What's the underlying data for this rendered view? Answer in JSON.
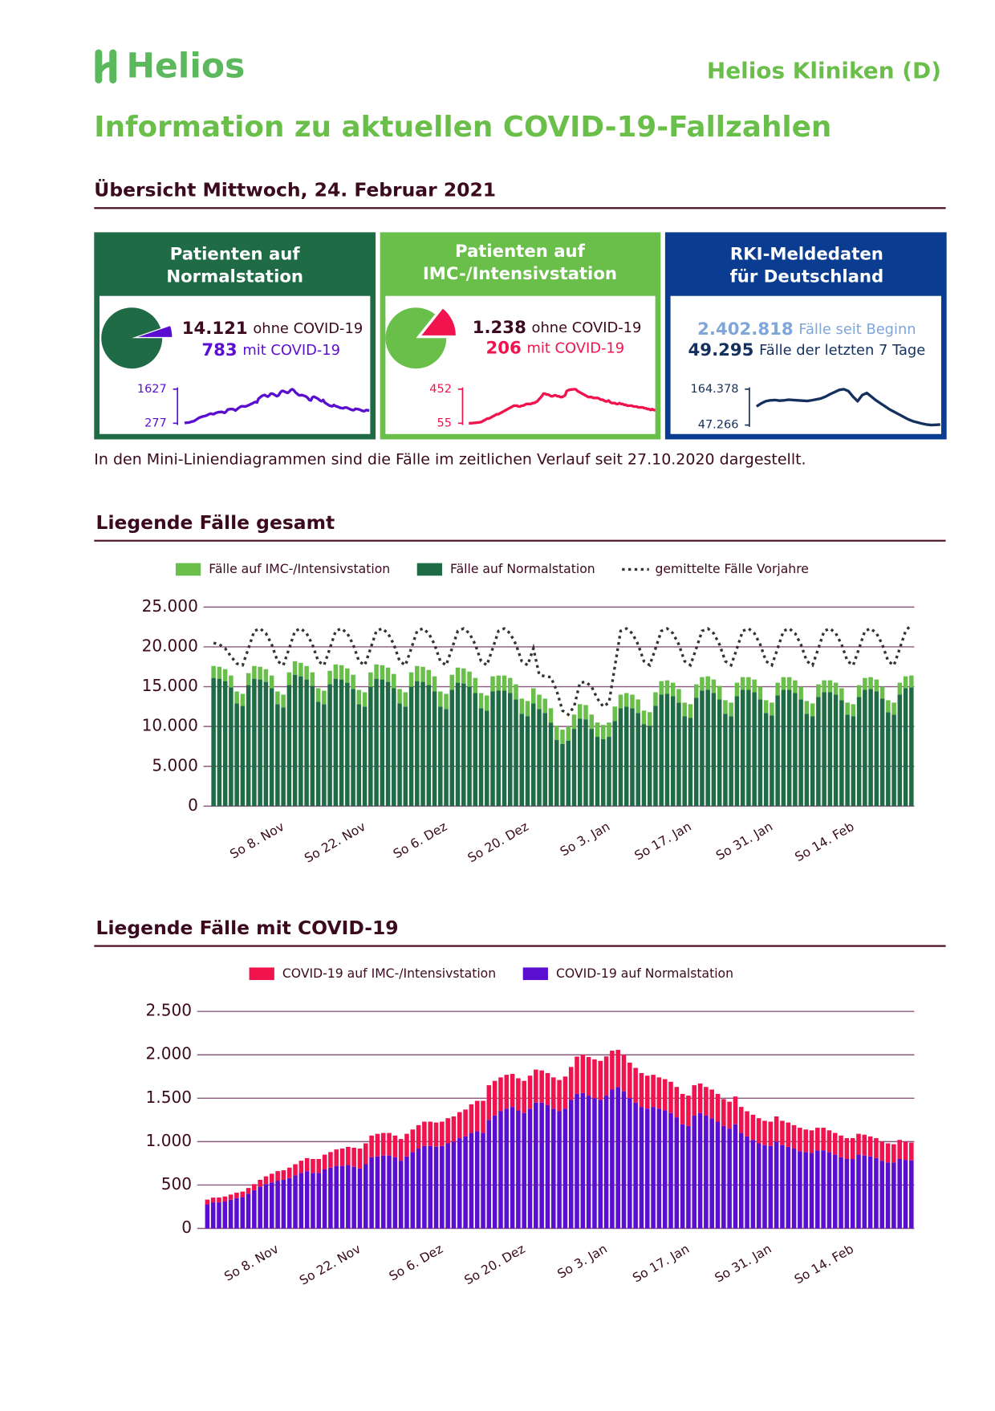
{
  "header": {
    "logo": "Helios",
    "org": "Helios Kliniken (D)",
    "title": "Information zu aktuellen COVID-19-Fallzahlen"
  },
  "overview": {
    "heading": "Übersicht Mittwoch, 24. Februar 2021",
    "note": "In den Mini-Liniendiagrammen sind die Fälle im zeitlichen Verlauf seit 27.10.2020 dargestellt.",
    "cards": [
      {
        "title": [
          "Patienten auf",
          "Normalstation"
        ],
        "pie": {
          "type": "pie",
          "values": [
            14121,
            783
          ],
          "value_labels": [
            "14.121",
            "783"
          ],
          "labels": [
            "ohne COVID-19",
            "mit COVID-19"
          ],
          "colors": [
            "#1f6b45",
            "#5a0fd0"
          ]
        },
        "spark": {
          "type": "line",
          "color": "#5a0fd0",
          "ylim": [
            277,
            1627
          ],
          "yticks": [
            277,
            1627
          ]
        }
      },
      {
        "title": [
          "Patienten auf",
          "IMC-/Intensivstation"
        ],
        "pie": {
          "type": "pie",
          "values": [
            1238,
            206
          ],
          "value_labels": [
            "1.238",
            "206"
          ],
          "labels": [
            "ohne COVID-19",
            "mit COVID-19"
          ],
          "colors": [
            "#6abf4b",
            "#f0134d"
          ]
        },
        "spark": {
          "type": "line",
          "color": "#f0134d",
          "ylim": [
            55,
            452
          ],
          "yticks": [
            55,
            452
          ]
        }
      },
      {
        "title": [
          "RKI-Meldedaten",
          "für Deutschland"
        ],
        "stats": [
          {
            "number": "2.402.818",
            "text": "Fälle seit Beginn"
          },
          {
            "number": "49.295",
            "text": "Fälle der letzten 7 Tage"
          }
        ],
        "spark": {
          "type": "line",
          "color": "#14305e",
          "ylim": [
            47266,
            164378
          ],
          "yticks": [
            {
              "value": 47266,
              "label": "47.266"
            },
            {
              "value": 164378,
              "label": "164.378"
            }
          ],
          "values": [
            108000,
            118000,
            125000,
            128000,
            129000,
            127000,
            128000,
            130000,
            129000,
            128000,
            127000,
            126000,
            128000,
            131000,
            134000,
            140000,
            148000,
            155000,
            162000,
            164378,
            158000,
            140000,
            125000,
            145000,
            152000,
            140000,
            128000,
            118000,
            108000,
            98000,
            90000,
            82000,
            74000,
            66000,
            60000,
            56000,
            52000,
            49000,
            47266,
            48000,
            49000
          ]
        }
      }
    ]
  },
  "chart_data": [
    {
      "type": "bar",
      "stacked": true,
      "title": "Liegende Fälle gesamt",
      "categories": [
        null,
        null,
        null,
        null,
        null,
        null,
        null,
        null,
        null,
        null,
        null,
        null,
        "So 8. Nov",
        null,
        null,
        null,
        null,
        null,
        null,
        null,
        null,
        null,
        null,
        null,
        null,
        null,
        "So 22. Nov",
        null,
        null,
        null,
        null,
        null,
        null,
        null,
        null,
        null,
        null,
        null,
        null,
        null,
        "So 6. Dez",
        null,
        null,
        null,
        null,
        null,
        null,
        null,
        null,
        null,
        null,
        null,
        null,
        null,
        "So 20. Dez",
        null,
        null,
        null,
        null,
        null,
        null,
        null,
        null,
        null,
        null,
        null,
        null,
        null,
        "So 3. Jan",
        null,
        null,
        null,
        null,
        null,
        null,
        null,
        null,
        null,
        null,
        null,
        null,
        null,
        "So 17. Jan",
        null,
        null,
        null,
        null,
        null,
        null,
        null,
        null,
        null,
        null,
        null,
        null,
        null,
        "So 31. Jan",
        null,
        null,
        null,
        null,
        null,
        null,
        null,
        null,
        null,
        null,
        null,
        null,
        null,
        "So 14. Feb",
        null,
        null,
        null,
        null,
        null,
        null,
        null,
        null,
        null,
        null
      ],
      "series": [
        {
          "name": "Fälle auf IMC-/Intensivstation",
          "color": "#6abf4b",
          "values": [
            1500,
            1500,
            1500,
            1500,
            1500,
            1500,
            1500,
            1600,
            1600,
            1600,
            1600,
            1600,
            1600,
            1600,
            1700,
            1700,
            1700,
            1700,
            1700,
            1700,
            1700,
            1800,
            1800,
            1800,
            1800,
            1800,
            1800,
            1800,
            1800,
            1800,
            1800,
            1800,
            1800,
            1800,
            1800,
            1900,
            1900,
            1900,
            1900,
            1900,
            1900,
            1900,
            1900,
            1900,
            1900,
            1900,
            1900,
            1900,
            1900,
            1900,
            1900,
            1900,
            1900,
            1900,
            1900,
            1900,
            1800,
            1800,
            1800,
            1800,
            1800,
            1800,
            1800,
            1800,
            1800,
            1800,
            1800,
            1800,
            1800,
            1800,
            1700,
            1700,
            1700,
            1700,
            1700,
            1700,
            1700,
            1700,
            1700,
            1700,
            1700,
            1700,
            1700,
            1700,
            1700,
            1700,
            1700,
            1700,
            1700,
            1700,
            1700,
            1600,
            1600,
            1600,
            1600,
            1600,
            1600,
            1600,
            1600,
            1600,
            1600,
            1600,
            1600,
            1600,
            1600,
            1500,
            1500,
            1500,
            1500,
            1500,
            1500,
            1500,
            1500,
            1500,
            1500,
            1500,
            1500,
            1500,
            1500,
            1500,
            1500
          ]
        },
        {
          "name": "Fälle auf Normalstation",
          "color": "#1f6b45",
          "values": [
            16100,
            16000,
            15700,
            14900,
            12900,
            12600,
            15200,
            16000,
            15900,
            15600,
            14800,
            12800,
            12400,
            15200,
            16500,
            16300,
            15900,
            15100,
            13100,
            12800,
            15300,
            16000,
            15900,
            15500,
            14700,
            12800,
            12500,
            15000,
            16000,
            15900,
            15600,
            14800,
            12900,
            12500,
            15000,
            15700,
            15600,
            15200,
            14400,
            12500,
            12200,
            14600,
            15500,
            15400,
            15000,
            14200,
            12300,
            12000,
            14400,
            14500,
            14500,
            14200,
            13400,
            11600,
            11300,
            12900,
            12200,
            11700,
            10500,
            8300,
            7800,
            8200,
            9700,
            11000,
            10900,
            9700,
            8700,
            8400,
            8700,
            10700,
            12300,
            12500,
            12300,
            11700,
            10300,
            10100,
            12600,
            14000,
            14100,
            13800,
            13000,
            11300,
            11100,
            13600,
            14500,
            14600,
            14200,
            13400,
            11600,
            11300,
            13800,
            14600,
            14600,
            14300,
            13400,
            11700,
            11400,
            13900,
            14600,
            14600,
            14200,
            13400,
            11600,
            11300,
            13700,
            14300,
            14300,
            14000,
            13300,
            11500,
            11300,
            13700,
            14600,
            14700,
            14400,
            13500,
            11800,
            11500,
            14000,
            14800,
            14900
          ]
        },
        {
          "name": "gemittelte Fälle Vorjahre",
          "type": "line",
          "dashed": true,
          "color": "#333333",
          "values": [
            20500,
            20300,
            19800,
            18800,
            17900,
            17700,
            19800,
            22000,
            22300,
            21700,
            20300,
            18200,
            17700,
            19800,
            22000,
            22300,
            21700,
            20300,
            18200,
            17700,
            19800,
            22000,
            22300,
            21700,
            20300,
            18200,
            17700,
            19800,
            22000,
            22300,
            21700,
            20300,
            18200,
            17700,
            19800,
            22000,
            22300,
            21700,
            20300,
            18200,
            17700,
            19800,
            22000,
            22300,
            21700,
            20300,
            18200,
            17700,
            19800,
            22000,
            22300,
            21700,
            20300,
            18200,
            17700,
            19800,
            16500,
            16300,
            16200,
            14500,
            12000,
            11500,
            12500,
            15500,
            15600,
            15000,
            13500,
            12500,
            13000,
            17500,
            22000,
            22300,
            21700,
            20300,
            18200,
            17700,
            19800,
            22000,
            22300,
            21700,
            20300,
            18200,
            17700,
            19800,
            22000,
            22300,
            21700,
            20300,
            18200,
            17700,
            19800,
            22000,
            22300,
            21700,
            20300,
            18200,
            17700,
            19800,
            22000,
            22300,
            21700,
            20300,
            18200,
            17700,
            19800,
            22000,
            22300,
            21700,
            20300,
            18200,
            17700,
            19800,
            22000,
            22300,
            21700,
            20300,
            18200,
            17700,
            19800,
            22000,
            22800
          ]
        }
      ],
      "ylim": [
        0,
        25000
      ],
      "yticks": [
        0,
        {
          "value": 5000,
          "label": "5.000"
        },
        {
          "value": 10000,
          "label": "10.000"
        },
        {
          "value": 15000,
          "label": "15.000"
        },
        {
          "value": 20000,
          "label": "20.000"
        },
        {
          "value": 25000,
          "label": "25.000"
        }
      ],
      "grid": true
    },
    {
      "type": "bar",
      "stacked": true,
      "title": "Liegende Fälle mit COVID-19",
      "categories": [
        null,
        null,
        null,
        null,
        null,
        null,
        null,
        null,
        null,
        null,
        null,
        null,
        "So 8. Nov",
        null,
        null,
        null,
        null,
        null,
        null,
        null,
        null,
        null,
        null,
        null,
        null,
        null,
        "So 22. Nov",
        null,
        null,
        null,
        null,
        null,
        null,
        null,
        null,
        null,
        null,
        null,
        null,
        null,
        "So 6. Dez",
        null,
        null,
        null,
        null,
        null,
        null,
        null,
        null,
        null,
        null,
        null,
        null,
        null,
        "So 20. Dez",
        null,
        null,
        null,
        null,
        null,
        null,
        null,
        null,
        null,
        null,
        null,
        null,
        null,
        "So 3. Jan",
        null,
        null,
        null,
        null,
        null,
        null,
        null,
        null,
        null,
        null,
        null,
        null,
        null,
        "So 17. Jan",
        null,
        null,
        null,
        null,
        null,
        null,
        null,
        null,
        null,
        null,
        null,
        null,
        null,
        "So 31. Jan",
        null,
        null,
        null,
        null,
        null,
        null,
        null,
        null,
        null,
        null,
        null,
        null,
        null,
        "So 14. Feb",
        null,
        null,
        null,
        null,
        null,
        null,
        null,
        null,
        null,
        null
      ],
      "series": [
        {
          "name": "COVID-19 auf IMC-/Intensivstation",
          "color": "#f0134d",
          "values": [
            55,
            55,
            56,
            58,
            60,
            62,
            64,
            66,
            70,
            80,
            90,
            100,
            110,
            110,
            120,
            130,
            140,
            150,
            160,
            160,
            170,
            180,
            190,
            200,
            210,
            220,
            230,
            240,
            250,
            260,
            260,
            260,
            250,
            250,
            260,
            260,
            270,
            280,
            280,
            280,
            280,
            290,
            290,
            300,
            310,
            330,
            350,
            370,
            400,
            400,
            390,
            390,
            380,
            370,
            370,
            380,
            380,
            370,
            370,
            360,
            360,
            370,
            380,
            430,
            440,
            445,
            448,
            450,
            452,
            448,
            430,
            420,
            410,
            400,
            390,
            380,
            370,
            360,
            360,
            360,
            350,
            350,
            350,
            350,
            340,
            330,
            330,
            320,
            310,
            310,
            320,
            300,
            290,
            290,
            290,
            280,
            280,
            290,
            280,
            280,
            270,
            270,
            260,
            260,
            260,
            260,
            250,
            250,
            250,
            240,
            240,
            240,
            240,
            230,
            230,
            220,
            220,
            210,
            220,
            210,
            206
          ]
        },
        {
          "name": "COVID-19 auf Normalstation",
          "color": "#5a0fd0",
          "values": [
            277,
            300,
            300,
            310,
            330,
            350,
            360,
            400,
            440,
            480,
            510,
            530,
            550,
            560,
            580,
            610,
            640,
            660,
            640,
            640,
            680,
            700,
            720,
            720,
            730,
            710,
            690,
            740,
            820,
            830,
            840,
            840,
            820,
            780,
            830,
            880,
            920,
            950,
            950,
            940,
            950,
            980,
            1000,
            1040,
            1060,
            1100,
            1120,
            1100,
            1250,
            1300,
            1350,
            1380,
            1400,
            1360,
            1330,
            1380,
            1450,
            1450,
            1420,
            1380,
            1350,
            1380,
            1480,
            1550,
            1560,
            1530,
            1500,
            1480,
            1530,
            1600,
            1627,
            1580,
            1500,
            1450,
            1400,
            1380,
            1400,
            1380,
            1360,
            1330,
            1280,
            1200,
            1180,
            1300,
            1330,
            1300,
            1270,
            1230,
            1180,
            1150,
            1200,
            1100,
            1060,
            1020,
            980,
            960,
            950,
            1000,
            960,
            940,
            920,
            890,
            880,
            870,
            900,
            900,
            880,
            850,
            820,
            800,
            800,
            850,
            840,
            830,
            810,
            780,
            760,
            760,
            800,
            790,
            783
          ]
        }
      ],
      "ylim": [
        0,
        2500
      ],
      "yticks": [
        0,
        500,
        {
          "value": 1000,
          "label": "1.000"
        },
        {
          "value": 1500,
          "label": "1.500"
        },
        {
          "value": 2000,
          "label": "2.000"
        },
        {
          "value": 2500,
          "label": "2.500"
        }
      ],
      "grid": true
    }
  ]
}
